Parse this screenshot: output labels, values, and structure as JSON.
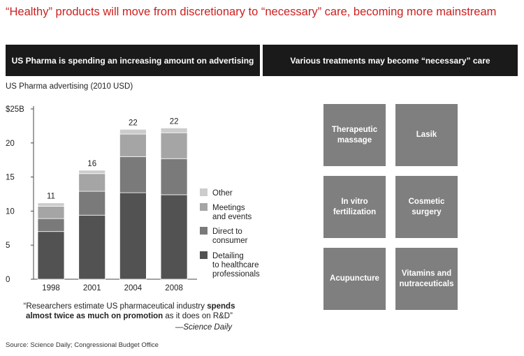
{
  "title": "“Healthy” products will move from discretionary to “necessary” care, becoming more mainstream",
  "left_header": "US Pharma is spending an increasing amount on advertising",
  "right_header": "Various treatments may become “necessary” care",
  "chart_caption": "US Pharma advertising (2010 USD)",
  "chart_data": {
    "type": "bar",
    "stacked": true,
    "categories": [
      "1998",
      "2001",
      "2004",
      "2008"
    ],
    "series": [
      {
        "name": "Detailing to healthcare professionals",
        "values": [
          7.0,
          9.4,
          12.7,
          12.4
        ]
      },
      {
        "name": "Direct to consumer",
        "values": [
          1.9,
          3.5,
          5.3,
          5.3
        ]
      },
      {
        "name": "Meetings and events",
        "values": [
          1.8,
          2.6,
          3.3,
          3.8
        ]
      },
      {
        "name": "Other",
        "values": [
          0.5,
          0.5,
          0.7,
          0.7
        ]
      }
    ],
    "totals": [
      11,
      16,
      22,
      22
    ],
    "ylim": [
      0,
      25
    ],
    "yticks": [
      0,
      5,
      10,
      15,
      20,
      25
    ],
    "ytick_labels": [
      "0",
      "5",
      "10",
      "15",
      "20",
      "$25B"
    ],
    "legend_position": "right",
    "legend": [
      {
        "series_index": 3,
        "lines": [
          "Other"
        ]
      },
      {
        "series_index": 2,
        "lines": [
          "Meetings",
          "and events"
        ]
      },
      {
        "series_index": 1,
        "lines": [
          "Direct to",
          "consumer"
        ]
      },
      {
        "series_index": 0,
        "lines": [
          "Detailing",
          "to healthcare",
          "professionals"
        ]
      }
    ],
    "colors": [
      "#525252",
      "#7a7a7a",
      "#a5a5a5",
      "#cccccc"
    ],
    "grid": false
  },
  "quote": {
    "open": "“Researchers estimate US pharmaceutical industry ",
    "bold1": "spends",
    "bold2": "almost twice as much on promotion",
    "rest": " as it does on R&D”",
    "source": "—Science Daily"
  },
  "source_note": "Source: Science Daily; Congressional Budget Office",
  "treatments": [
    "Therapeutic massage",
    "Lasik",
    "In vitro fertilization",
    "Cosmetic surgery",
    "Acupuncture",
    "Vitamins and nutraceuticals"
  ],
  "tile_color": "#7f7f7f"
}
